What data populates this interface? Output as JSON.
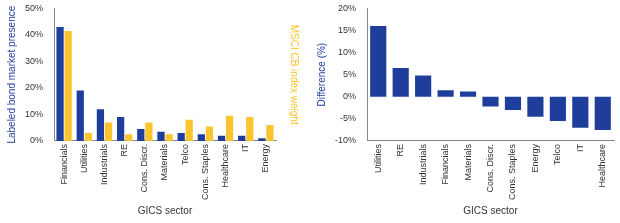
{
  "chart_data": [
    {
      "type": "bar",
      "categories": [
        "Financials",
        "Utilities",
        "Industrials",
        "RE",
        "Cons. Discr.",
        "Materials",
        "Telco",
        "Cons. Staples",
        "Healthcare",
        "IT",
        "Energy"
      ],
      "series": [
        {
          "name": "Labeled bond market presence",
          "color": "#1f3e9c",
          "values": [
            43,
            19,
            12,
            9,
            4.5,
            3.5,
            3,
            2.5,
            2,
            2,
            1
          ]
        },
        {
          "name": "MSCI CB index weight",
          "color": "#fcc42d",
          "values": [
            41.5,
            3,
            7,
            2.5,
            7,
            2.5,
            8,
            5.5,
            9.5,
            9,
            6
          ]
        }
      ],
      "x_label": "GICS sector",
      "y_label": "Labeled bond market presence",
      "y2_label": "MSCI CB index weight",
      "ylim": [
        0,
        50
      ],
      "yticks": [
        {
          "value": 0,
          "label": "0%"
        },
        {
          "value": 10,
          "label": "10%"
        },
        {
          "value": 20,
          "label": "20%"
        },
        {
          "value": 30,
          "label": "30%"
        },
        {
          "value": 40,
          "label": "40%"
        },
        {
          "value": 50,
          "label": "50%"
        }
      ],
      "grid": false,
      "legend": false
    },
    {
      "type": "bar",
      "categories": [
        "Utilities",
        "RE",
        "Industrials",
        "Financials",
        "Materials",
        "Cons. Discr.",
        "Cons. Staples",
        "Energy",
        "Telco",
        "IT",
        "Healthcare"
      ],
      "values": [
        16,
        6.5,
        4.8,
        1.5,
        1.2,
        -2.2,
        -3,
        -4.5,
        -5.5,
        -7,
        -7.5
      ],
      "color": "#1f3e9c",
      "x_label": "GICS sector",
      "y_label": "Difference (%)",
      "ylim": [
        -10,
        20
      ],
      "yticks": [
        {
          "value": -10,
          "label": "-10%"
        },
        {
          "value": -5,
          "label": "-5%"
        },
        {
          "value": 0,
          "label": "0%"
        },
        {
          "value": 5,
          "label": "5%"
        },
        {
          "value": 10,
          "label": "10%"
        },
        {
          "value": 15,
          "label": "15%"
        },
        {
          "value": 20,
          "label": "20%"
        }
      ],
      "grid": false,
      "legend": false
    }
  ]
}
